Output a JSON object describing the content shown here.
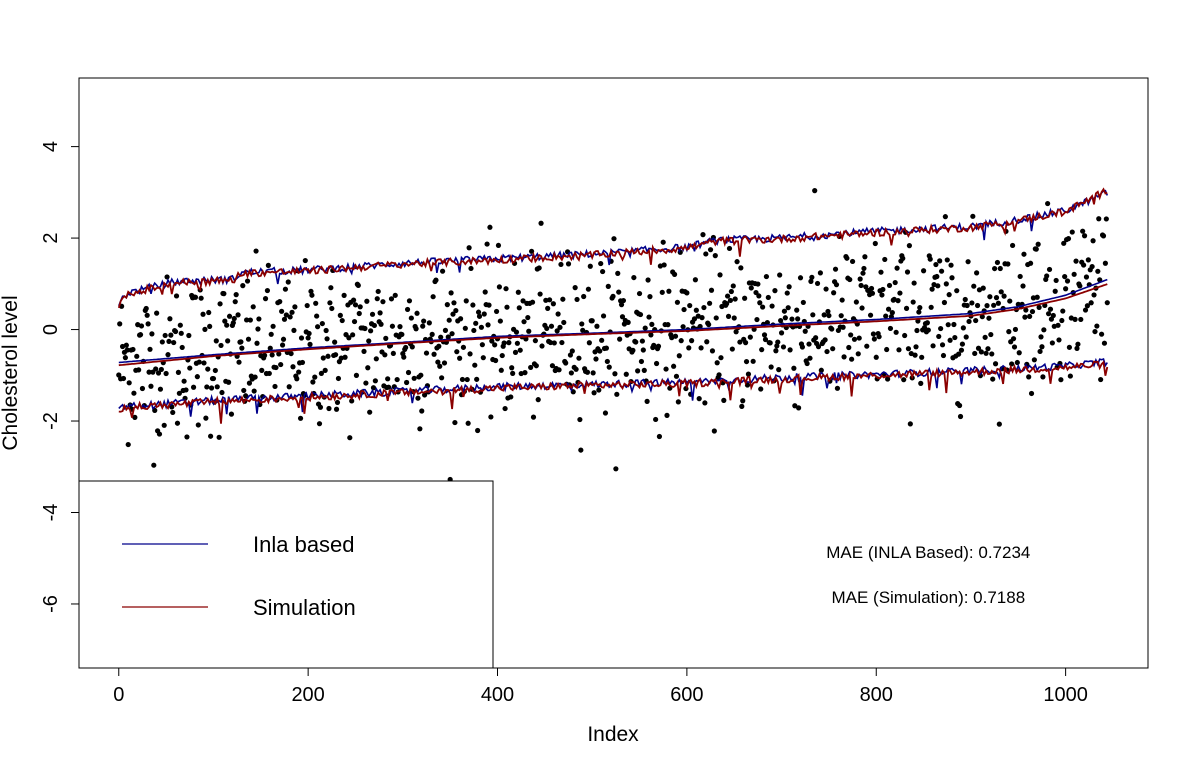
{
  "chart_data": {
    "type": "scatter",
    "title": "",
    "xlabel": "Index",
    "ylabel": "Cholesterol level",
    "xlim": [
      -42,
      1087
    ],
    "ylim": [
      -7.4,
      5.5
    ],
    "xticks": [
      0,
      200,
      400,
      600,
      800,
      1000
    ],
    "xtick_labels": [
      "0",
      "200",
      "400",
      "600",
      "800",
      "1000"
    ],
    "yticks": [
      -6,
      -4,
      -2,
      0,
      2,
      4
    ],
    "ytick_labels": [
      "-6",
      "-4",
      "-2",
      "0",
      "2",
      "4"
    ],
    "n_points": 1045,
    "point_color": "#000000",
    "series": [
      {
        "name": "Inla based",
        "color": "#00008b",
        "upper": [
          [
            0,
            0.6
          ],
          [
            10,
            0.8
          ],
          [
            30,
            0.9
          ],
          [
            60,
            1.05
          ],
          [
            120,
            1.1
          ],
          [
            130,
            1.25
          ],
          [
            200,
            1.3
          ],
          [
            300,
            1.45
          ],
          [
            400,
            1.55
          ],
          [
            500,
            1.65
          ],
          [
            600,
            1.8
          ],
          [
            630,
            1.95
          ],
          [
            700,
            2.0
          ],
          [
            800,
            2.15
          ],
          [
            900,
            2.25
          ],
          [
            950,
            2.4
          ],
          [
            1000,
            2.6
          ],
          [
            1045,
            3.0
          ]
        ],
        "middle": [
          [
            0,
            -0.72
          ],
          [
            100,
            -0.55
          ],
          [
            200,
            -0.4
          ],
          [
            300,
            -0.28
          ],
          [
            400,
            -0.15
          ],
          [
            500,
            -0.08
          ],
          [
            600,
            0.0
          ],
          [
            700,
            0.12
          ],
          [
            800,
            0.22
          ],
          [
            900,
            0.35
          ],
          [
            950,
            0.5
          ],
          [
            1000,
            0.75
          ],
          [
            1045,
            1.1
          ]
        ],
        "lower": [
          [
            0,
            -1.7
          ],
          [
            100,
            -1.55
          ],
          [
            200,
            -1.45
          ],
          [
            300,
            -1.35
          ],
          [
            400,
            -1.25
          ],
          [
            500,
            -1.2
          ],
          [
            600,
            -1.15
          ],
          [
            700,
            -1.05
          ],
          [
            800,
            -0.98
          ],
          [
            900,
            -0.9
          ],
          [
            1000,
            -0.8
          ],
          [
            1045,
            -0.7
          ]
        ]
      },
      {
        "name": "Simulation",
        "color": "#8b0000",
        "upper": [
          [
            0,
            0.55
          ],
          [
            10,
            0.75
          ],
          [
            30,
            0.88
          ],
          [
            60,
            1.02
          ],
          [
            120,
            1.08
          ],
          [
            130,
            1.23
          ],
          [
            200,
            1.28
          ],
          [
            300,
            1.43
          ],
          [
            400,
            1.52
          ],
          [
            500,
            1.63
          ],
          [
            600,
            1.78
          ],
          [
            630,
            1.93
          ],
          [
            700,
            1.98
          ],
          [
            800,
            2.12
          ],
          [
            900,
            2.23
          ],
          [
            950,
            2.38
          ],
          [
            1000,
            2.58
          ],
          [
            1045,
            3.05
          ]
        ],
        "middle": [
          [
            0,
            -0.78
          ],
          [
            100,
            -0.58
          ],
          [
            200,
            -0.43
          ],
          [
            300,
            -0.3
          ],
          [
            400,
            -0.18
          ],
          [
            500,
            -0.1
          ],
          [
            600,
            -0.03
          ],
          [
            700,
            0.08
          ],
          [
            800,
            0.18
          ],
          [
            900,
            0.3
          ],
          [
            950,
            0.45
          ],
          [
            1000,
            0.68
          ],
          [
            1045,
            1.0
          ]
        ],
        "lower": [
          [
            0,
            -1.72
          ],
          [
            100,
            -1.58
          ],
          [
            200,
            -1.48
          ],
          [
            300,
            -1.38
          ],
          [
            400,
            -1.28
          ],
          [
            500,
            -1.22
          ],
          [
            600,
            -1.18
          ],
          [
            700,
            -1.08
          ],
          [
            800,
            -1.0
          ],
          [
            900,
            -0.93
          ],
          [
            1000,
            -0.83
          ],
          [
            1045,
            -0.75
          ]
        ]
      }
    ],
    "legend": {
      "placement": "bottom-left",
      "entries": [
        {
          "label": "Inla based",
          "color": "#00008b"
        },
        {
          "label": "Simulation",
          "color": "#8b0000"
        }
      ]
    },
    "annotations": [
      {
        "text": "MAE (INLA Based): 0.7234",
        "x": 855,
        "y": -5.0
      },
      {
        "text": "MAE (Simulation): 0.7188",
        "x": 855,
        "y": -5.98
      }
    ],
    "grid": false
  }
}
